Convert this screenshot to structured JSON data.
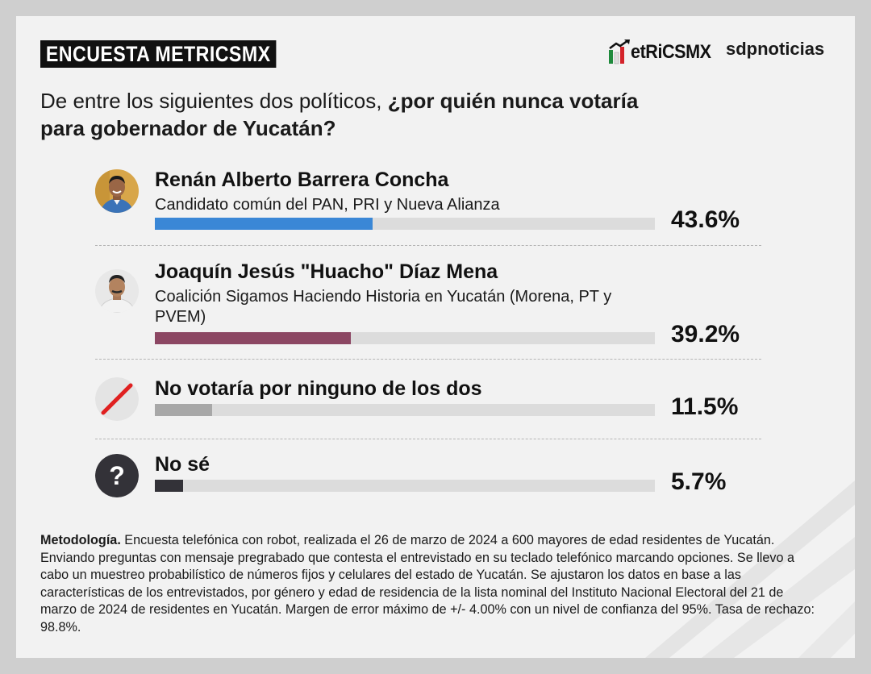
{
  "header": {
    "badge": "ENCUESTA METRICSMX",
    "logo_metrics": "etRiCSMX",
    "logo_sdp": "sdpnoticias"
  },
  "question": {
    "normal": "De entre los siguientes dos políticos, ",
    "bold_1": "¿por quién nunca votaría",
    "bold_2": "para gobernador de Yucatán?"
  },
  "chart_data": {
    "type": "bar",
    "orientation": "horizontal",
    "ylim": [
      0,
      100
    ],
    "categories": [
      "Renán Alberto Barrera Concha",
      "Joaquín Jesús \"Huacho\" Díaz Mena",
      "No votaría por ninguno de los dos",
      "No sé"
    ],
    "values": [
      43.6,
      39.2,
      11.5,
      5.7
    ],
    "value_labels": [
      "43.6%",
      "39.2%",
      "11.5%",
      "5.7%"
    ],
    "descriptions": [
      "Candidato común del PAN, PRI y Nueva Alianza",
      "Coalición Sigamos Haciendo Historia en Yucatán (Morena, PT y PVEM)",
      "",
      ""
    ],
    "colors": [
      "#3a87d6",
      "#8c4763",
      "#a8a8a8",
      "#333238"
    ],
    "track_color": "#dcdcdc",
    "icons": [
      "candidate-photo",
      "candidate-photo",
      "prohibited-slash-icon",
      "question-mark-icon"
    ]
  },
  "methodology": {
    "label": "Metodología.",
    "text": " Encuesta telefónica con robot, realizada el 26 de marzo de 2024 a 600 mayores de edad residentes de Yucatán. Enviando preguntas con mensaje pregrabado que contesta el entrevistado en su teclado telefónico marcando opciones. Se llevo a cabo un muestreo probabilístico de números fijos y celulares del estado de Yucatán. Se ajustaron los datos en base a las características de los entrevistados, por género y edad de residencia de la lista nominal del Instituto Nacional Electoral del 21 de marzo de 2024 de residentes en Yucatán. Margen de error máximo de +/- 4.00% con un nivel de confianza del 95%. Tasa de rechazo: 98.8%."
  }
}
